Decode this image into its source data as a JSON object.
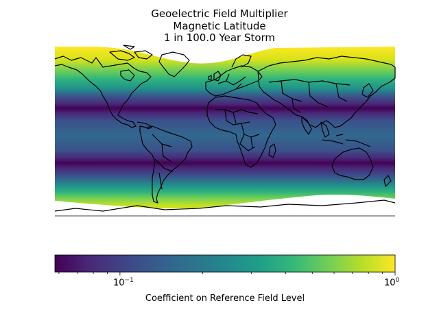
{
  "title": {
    "line1": "Geoelectric Field Multiplier",
    "line2": "Magnetic Latitude",
    "line3": "1 in 100.0 Year Storm"
  },
  "colorbar": {
    "label": "Coefficient on Reference Field Level",
    "scale": "log",
    "colormap": "viridis",
    "range": [
      0.058,
      1.0
    ],
    "ticks": [
      {
        "base": "10",
        "exp": "−1"
      },
      {
        "base": "10",
        "exp": "0"
      }
    ]
  },
  "map": {
    "projection": "equirectangular",
    "coastlines": true,
    "country_borders": true,
    "colors": {
      "viridis_low": "#440154",
      "viridis_mid": "#21918c",
      "viridis_high": "#fde725",
      "border": "#000000"
    }
  }
}
